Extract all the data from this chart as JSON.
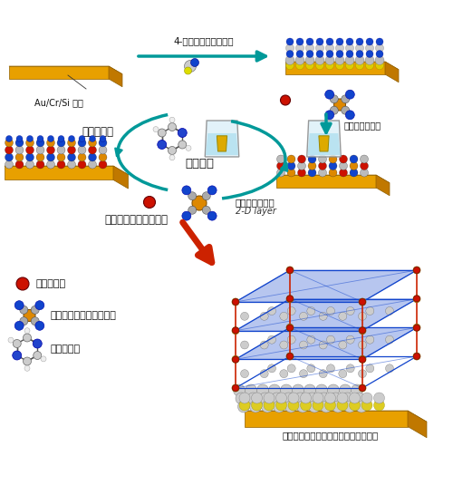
{
  "bg_color": "#ffffff",
  "fig_width": 5.0,
  "fig_height": 5.46,
  "dpi": 100,
  "labels": {
    "top_arrow": "4-メルカプトピリジン",
    "substrate": "Au/Cr/Si 基板",
    "pillar_ligand": "柱状配位子",
    "alternating": "交互浸漬",
    "layer_right_top": "２次元レイヤー",
    "layer_bottom": "２次元レイヤー",
    "layer_2d": "2-D layer",
    "cycles": "３０サイクル繰り返し",
    "iron_ion": "：鉄イオン",
    "platinum": "：テトラシアノ白金錯体",
    "pyrazine": "：ピラジン",
    "final": "３次元ホフマン型配位高分子ナノ薄膜"
  },
  "teal": "#009999",
  "red": "#cc2200",
  "gold": "#e8a000",
  "gold_top": "#f5c020",
  "gold_side": "#c07800",
  "iron_color": "#cc1100",
  "pt_color": "#dd8800",
  "cn_color": "#1144cc",
  "grey": "#aaaaaa",
  "n_color": "#2244cc",
  "text_color": "#111111"
}
